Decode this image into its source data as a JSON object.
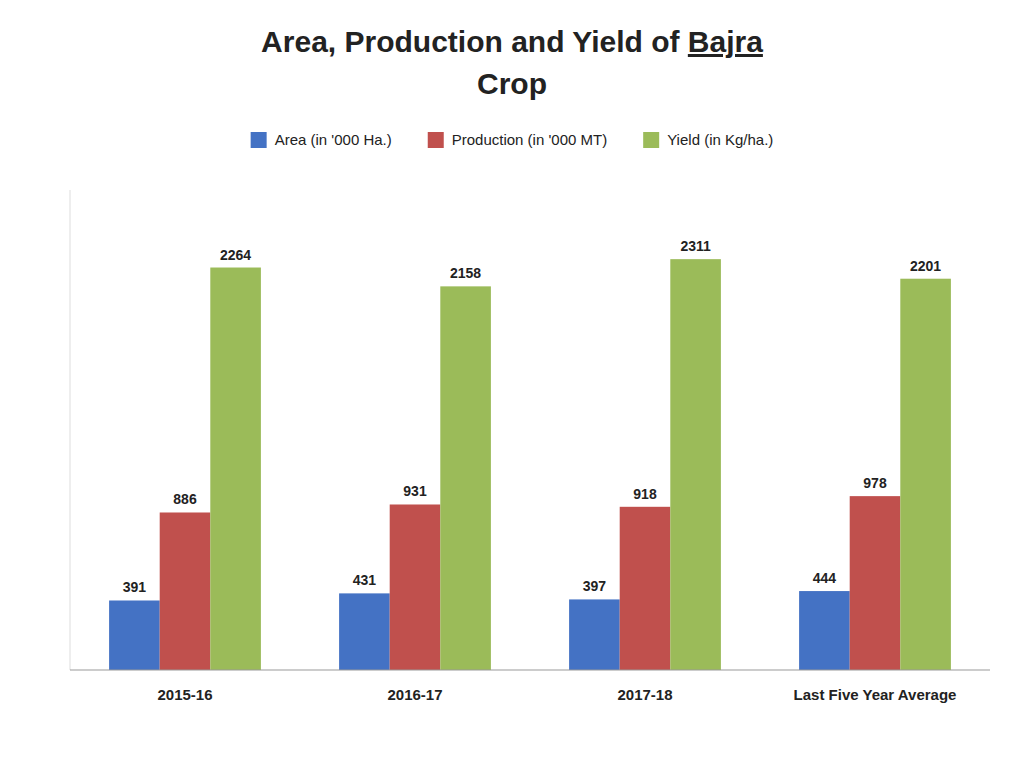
{
  "chart_data": {
    "type": "bar",
    "title": "Area, Production and Yield of Bajra",
    "subtitle": "Crop",
    "categories": [
      "2015-16",
      "2016-17",
      "2017-18",
      "Last Five Year Average"
    ],
    "series": [
      {
        "name": "Area (in '000 Ha.)",
        "color": "#4472C4",
        "values": [
          391,
          431,
          397,
          444
        ]
      },
      {
        "name": "Production (in '000 MT)",
        "color": "#C0504D",
        "values": [
          886,
          931,
          918,
          978
        ]
      },
      {
        "name": "Yield (in Kg/ha.)",
        "color": "#9BBB59",
        "values": [
          2264,
          2158,
          2311,
          2201
        ]
      }
    ],
    "ylim": [
      0,
      2700
    ],
    "grid": false,
    "legend": "top",
    "data_labels": true,
    "tick_labels": "x"
  }
}
